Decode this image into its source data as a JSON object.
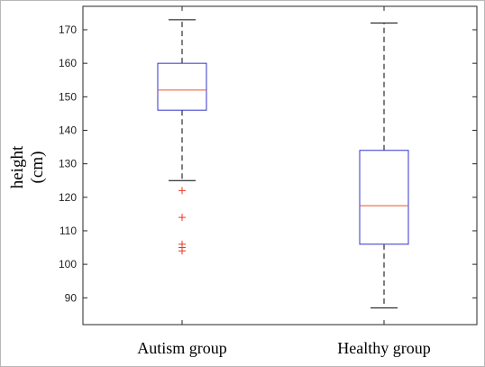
{
  "chart_data": {
    "type": "box",
    "ylabel_lines": [
      "height",
      "(cm)"
    ],
    "xlabel": "",
    "categories": [
      "Autism group",
      "Healthy group"
    ],
    "ylim": [
      82,
      177
    ],
    "yticks": [
      90,
      100,
      110,
      120,
      130,
      140,
      150,
      160,
      170
    ],
    "series": [
      {
        "category": "Autism group",
        "whisker_low": 125,
        "q1": 146,
        "median": 152,
        "q3": 160,
        "whisker_high": 173,
        "outliers": [
          122,
          114,
          106,
          105,
          104
        ]
      },
      {
        "category": "Healthy group",
        "whisker_low": 87,
        "q1": 106,
        "median": 117.5,
        "q3": 134,
        "whisker_high": 172,
        "outliers": []
      }
    ],
    "colors": {
      "box": "#3333cc",
      "median": "#ee5533",
      "whisker": "#000000",
      "outlier": "#ee3322",
      "axes": "#262626"
    },
    "grid": false
  }
}
